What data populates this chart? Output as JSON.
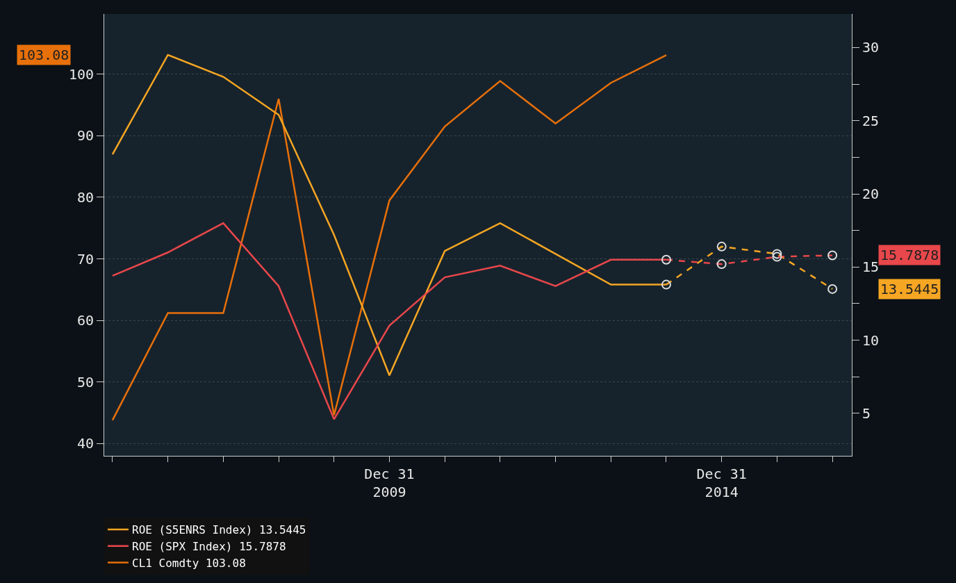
{
  "chart_data": {
    "type": "line",
    "categories": [
      null,
      null,
      null,
      null,
      null,
      "Dec 31\n2009",
      null,
      null,
      null,
      null,
      null,
      "Dec 31\n2014",
      null,
      null
    ],
    "series": [
      {
        "name": "ROE (S5ENRS Index) 13.5445",
        "color": "#f5a623",
        "axis": "y2",
        "line_style": "solid",
        "marker": "none",
        "values": [
          22.7,
          29.5,
          28.0,
          25.4,
          17.2,
          7.6,
          16.1,
          18.0,
          15.9,
          13.8,
          13.8,
          null,
          null,
          null
        ]
      },
      {
        "name": "ROE (SPX Index) 15.7878",
        "color": "#e8474b",
        "axis": "y2",
        "line_style": "solid",
        "marker": "none",
        "values": [
          14.4,
          16.0,
          18.0,
          13.7,
          4.6,
          11.0,
          14.3,
          15.1,
          13.7,
          15.5,
          15.5,
          null,
          null,
          null
        ]
      },
      {
        "name": "CL1 Comdty 103.08",
        "color": "#e8700a",
        "axis": "y",
        "line_style": "solid",
        "marker": "none",
        "values": [
          43.8,
          61.2,
          61.2,
          96.0,
          44.6,
          79.5,
          91.5,
          98.9,
          92.0,
          98.6,
          103.1,
          null,
          null,
          null
        ]
      },
      {
        "color": "#f5a623",
        "axis": "y2",
        "line_style": "dashed",
        "marker": "circle",
        "values": [
          null,
          null,
          null,
          null,
          null,
          null,
          null,
          null,
          null,
          null,
          13.8,
          16.4,
          15.9,
          13.5
        ]
      },
      {
        "color": "#e8474b",
        "axis": "y2",
        "line_style": "dashed",
        "marker": "circle",
        "values": [
          null,
          null,
          null,
          null,
          null,
          null,
          null,
          null,
          null,
          null,
          15.5,
          15.2,
          15.7,
          15.8
        ]
      }
    ],
    "annotations": [
      "13.5445",
      "15.7878",
      "103.08"
    ],
    "ylim": [
      38.0,
      109.8
    ],
    "yticks": [
      40,
      50,
      60,
      70,
      80,
      90,
      100
    ],
    "y2lim": [
      2.1,
      32.3
    ],
    "y2ticks": [
      5,
      {
        "value": 7.5,
        "label": null
      },
      10,
      {
        "value": 12.5,
        "label": null
      },
      15,
      {
        "value": 17.5,
        "label": null
      },
      20,
      {
        "value": 22.5,
        "label": null
      },
      25,
      {
        "value": 27.5,
        "label": null
      },
      30
    ],
    "grid": "y",
    "legend": "bottom left"
  }
}
